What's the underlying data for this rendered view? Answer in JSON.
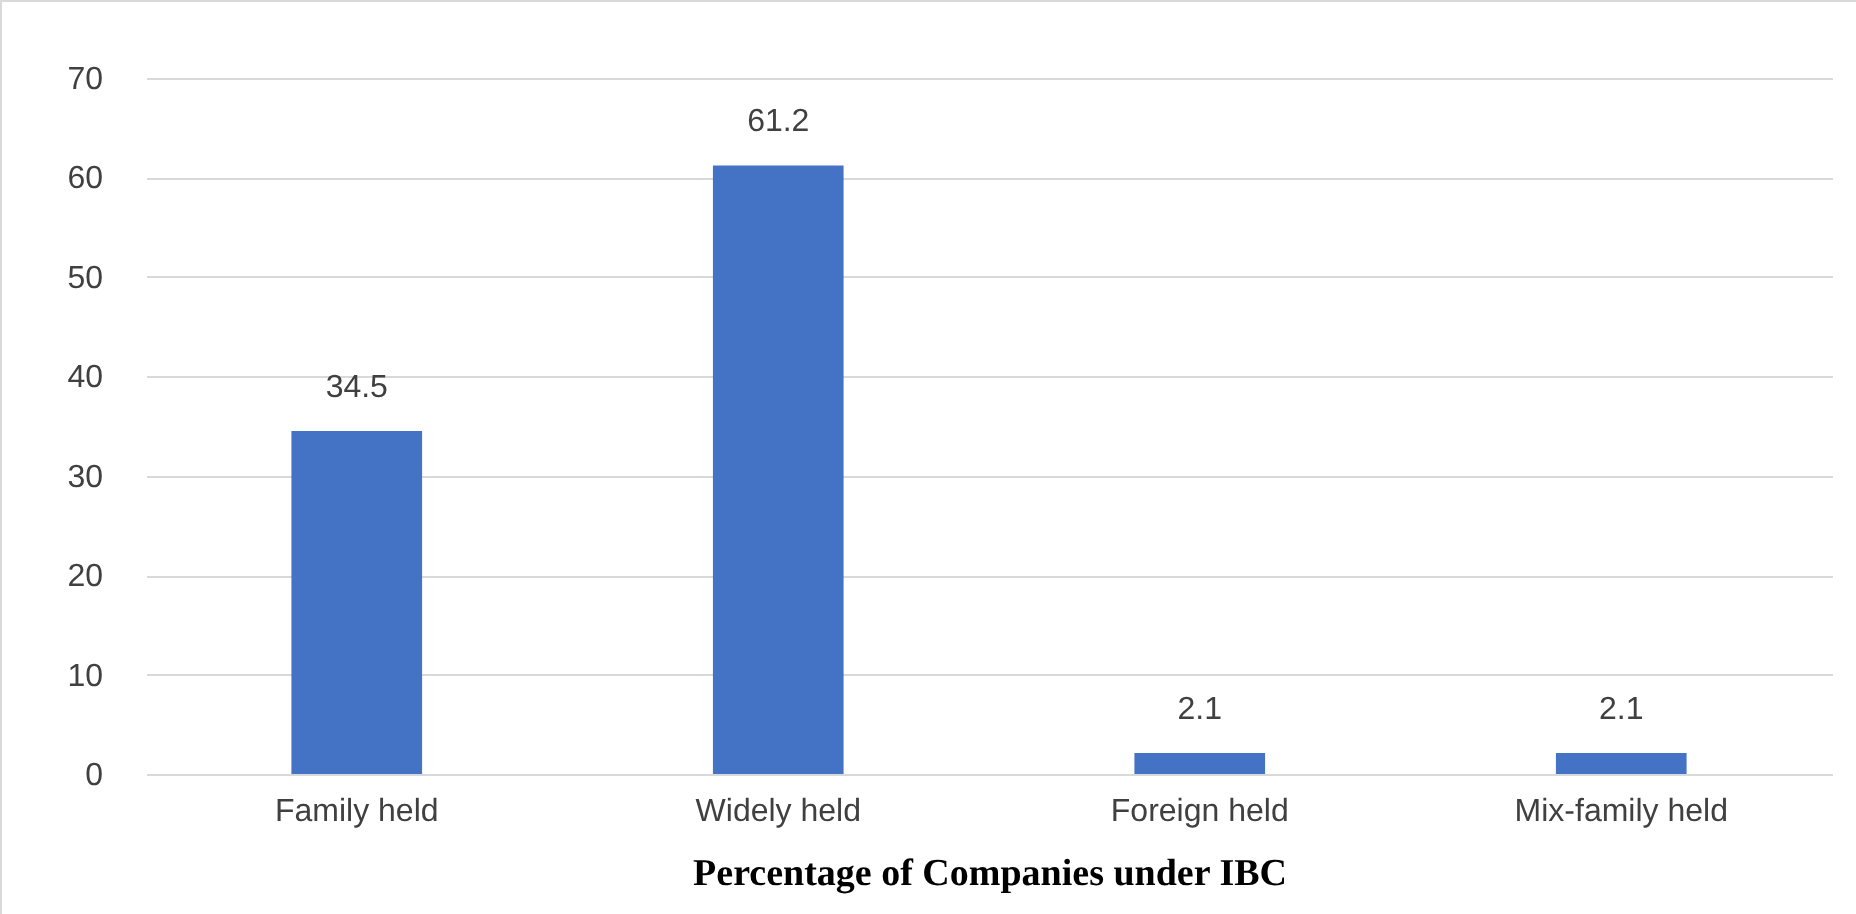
{
  "chart_data": {
    "type": "bar",
    "xlabel": "Percentage of Companies under IBC",
    "categories": [
      "Family held",
      "Widely held",
      "Foreign held",
      "Mix-family held"
    ],
    "values": [
      34.5,
      61.2,
      2.1,
      2.1
    ],
    "color": "#4472c4",
    "ylim": [
      0,
      70
    ],
    "yticks": [
      0,
      10,
      20,
      30,
      40,
      50,
      60,
      70
    ],
    "grid": "y",
    "data_labels": true
  }
}
